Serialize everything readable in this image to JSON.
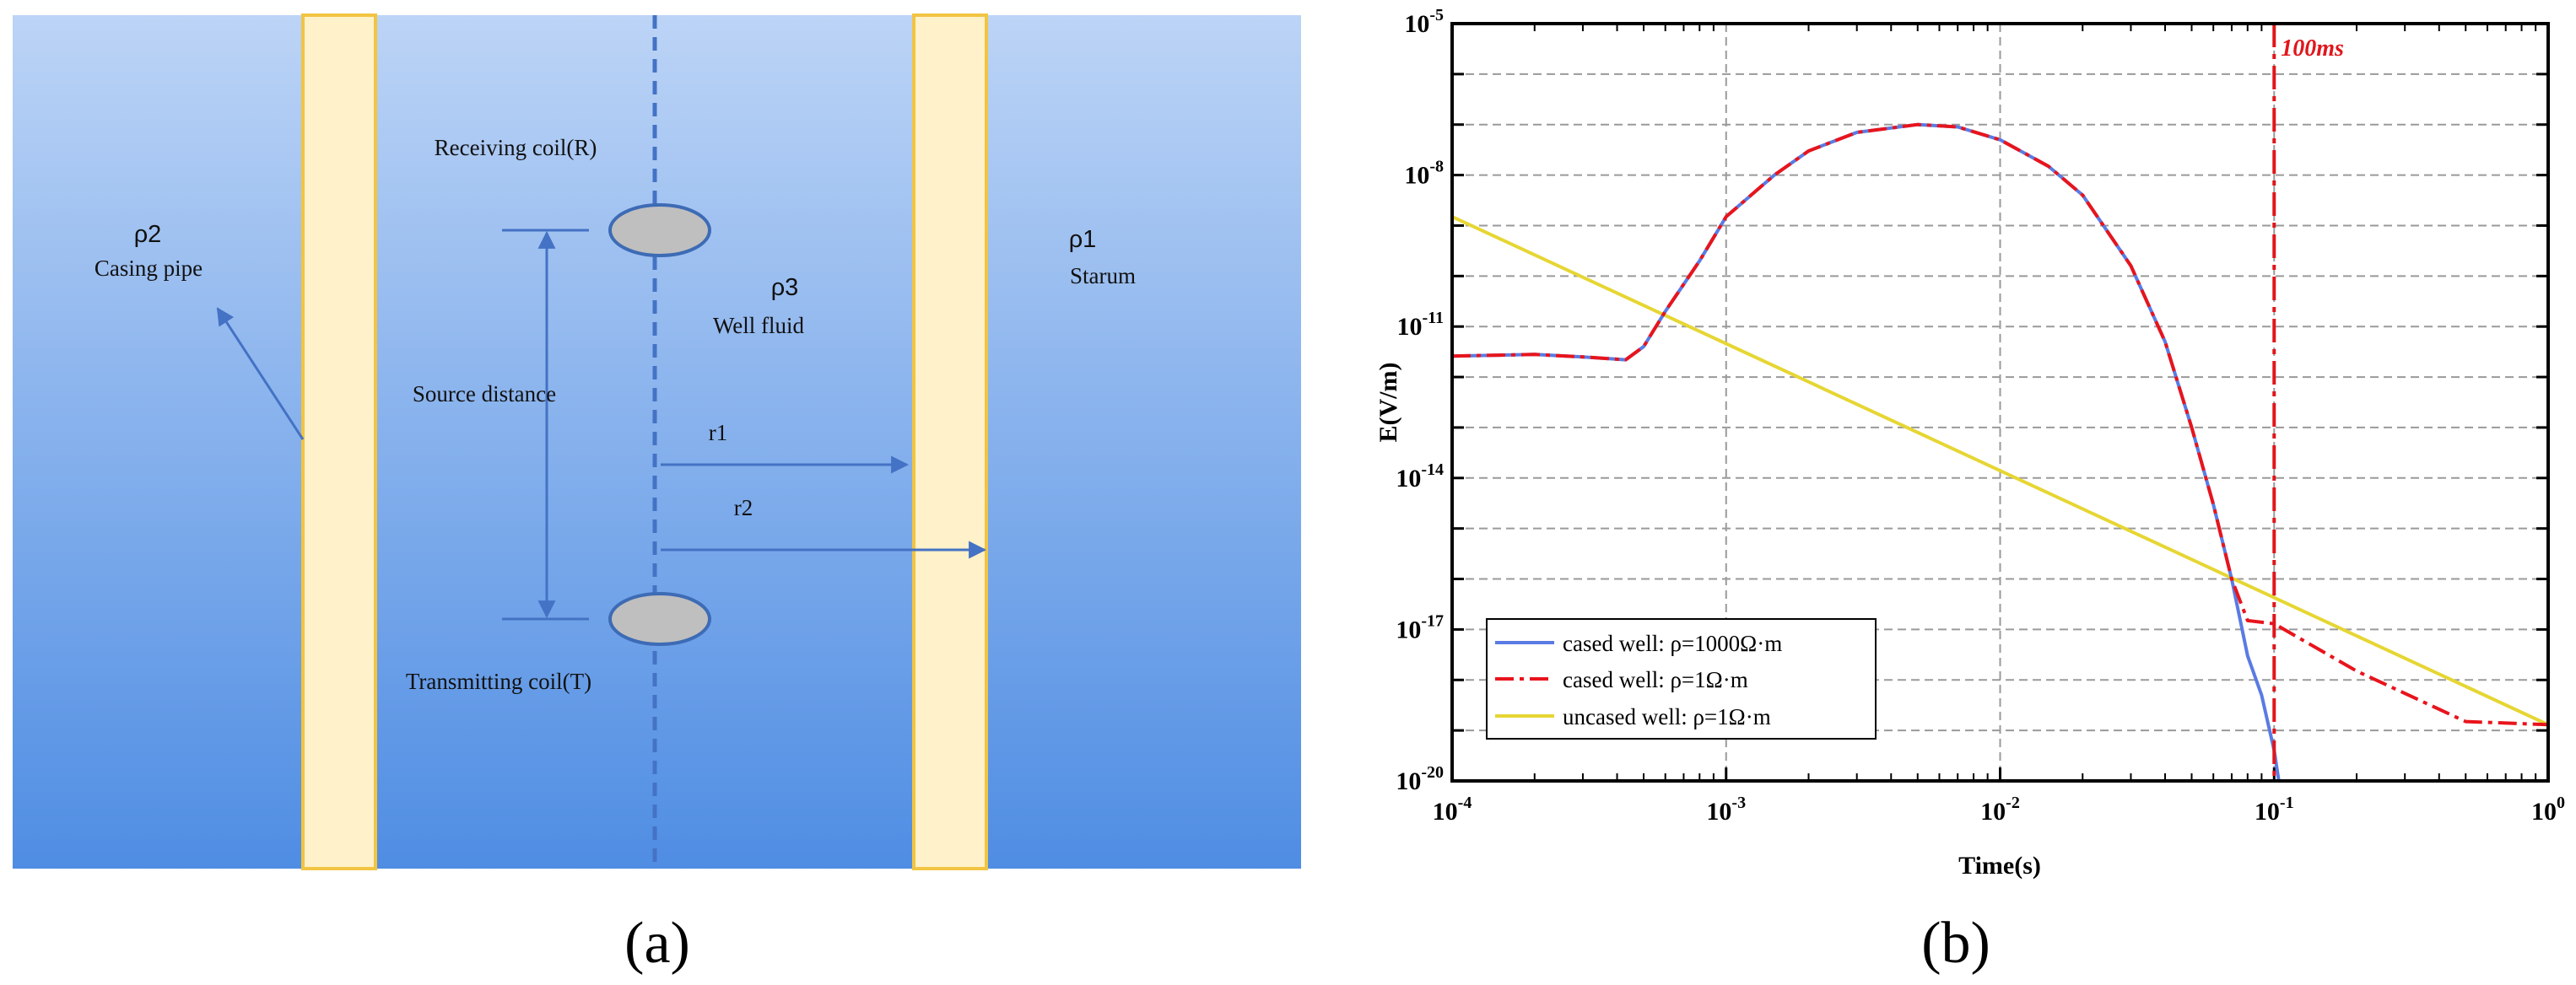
{
  "panel_a": {
    "caption": "(a)",
    "regions": {
      "casing": {
        "symbol": "ρ2",
        "name": "Casing pipe"
      },
      "fluid": {
        "symbol": "ρ3",
        "name": "Well fluid"
      },
      "stratum": {
        "symbol": "ρ1",
        "name": "Starum"
      }
    },
    "labels": {
      "receiving_coil": "Receiving coil(R)",
      "transmitting_coil": "Transmitting coil(T)",
      "source_distance": "Source distance",
      "r1": "r1",
      "r2": "r2"
    },
    "colors": {
      "background_top": "#bcd4f6",
      "background_bottom": "#4f8de3",
      "casing_fill": "#fff1c9",
      "casing_stroke": "#f2c443",
      "line": "#4472c4",
      "coil_fill": "#bfbfbf",
      "coil_stroke": "#3d6bb5"
    }
  },
  "panel_b": {
    "caption": "(b)",
    "chart_data": {
      "type": "line",
      "xlabel": "Time(s)",
      "ylabel": "E(V/m)",
      "x_scale": "log",
      "y_scale": "log",
      "xlim": [
        0.0001,
        1
      ],
      "ylim": [
        1e-20,
        1e-05
      ],
      "grid": true,
      "x_ticks": [
        {
          "value": 0.0001,
          "base": "10",
          "exp": "-4"
        },
        {
          "value": 0.001,
          "base": "10",
          "exp": "-3"
        },
        {
          "value": 0.01,
          "base": "10",
          "exp": "-2"
        },
        {
          "value": 0.1,
          "base": "10",
          "exp": "-1"
        },
        {
          "value": 1,
          "base": "10",
          "exp": "0"
        }
      ],
      "y_ticks": [
        {
          "value": 1e-20,
          "base": "10",
          "exp": "-20"
        },
        {
          "value": 1e-17,
          "base": "10",
          "exp": "-17"
        },
        {
          "value": 1e-14,
          "base": "10",
          "exp": "-14"
        },
        {
          "value": 1e-11,
          "base": "10",
          "exp": "-11"
        },
        {
          "value": 1e-08,
          "base": "10",
          "exp": "-8"
        },
        {
          "value": 1e-05,
          "base": "10",
          "exp": "-5"
        }
      ],
      "legend_position": "bottom-left",
      "annotation": {
        "x": 0.1,
        "label": "100ms",
        "color": "#e0161b"
      },
      "series": [
        {
          "name": "cased well: ρ=1000Ω·m",
          "color": "#5a7be3",
          "style": "solid",
          "points": [
            [
              0.0001,
              2.6e-12
            ],
            [
              0.0002,
              2.8e-12
            ],
            [
              0.0003,
              2.5e-12
            ],
            [
              0.00043,
              2.2e-12
            ],
            [
              0.0005,
              4e-12
            ],
            [
              0.0006,
              2e-11
            ],
            [
              0.0008,
              2e-10
            ],
            [
              0.001,
              1.5e-09
            ],
            [
              0.0015,
              1e-08
            ],
            [
              0.002,
              3e-08
            ],
            [
              0.003,
              7e-08
            ],
            [
              0.005,
              1e-07
            ],
            [
              0.007,
              9e-08
            ],
            [
              0.01,
              5e-08
            ],
            [
              0.015,
              1.5e-08
            ],
            [
              0.02,
              4e-09
            ],
            [
              0.03,
              1.6e-10
            ],
            [
              0.04,
              5e-12
            ],
            [
              0.05,
              1e-13
            ],
            [
              0.06,
              3e-15
            ],
            [
              0.07,
              1e-16
            ],
            [
              0.08,
              3e-18
            ],
            [
              0.09,
              5e-19
            ],
            [
              0.1,
              4e-20
            ],
            [
              0.104,
              1e-20
            ]
          ]
        },
        {
          "name": "cased well: ρ=1Ω·m",
          "color": "#e8141c",
          "style": "dashdot",
          "points": [
            [
              0.0001,
              2.6e-12
            ],
            [
              0.0002,
              2.8e-12
            ],
            [
              0.0003,
              2.5e-12
            ],
            [
              0.00043,
              2.2e-12
            ],
            [
              0.0005,
              4e-12
            ],
            [
              0.0006,
              2e-11
            ],
            [
              0.0008,
              2e-10
            ],
            [
              0.001,
              1.5e-09
            ],
            [
              0.0015,
              1e-08
            ],
            [
              0.002,
              3e-08
            ],
            [
              0.003,
              7e-08
            ],
            [
              0.005,
              1e-07
            ],
            [
              0.007,
              9e-08
            ],
            [
              0.01,
              5e-08
            ],
            [
              0.015,
              1.5e-08
            ],
            [
              0.02,
              4e-09
            ],
            [
              0.03,
              1.6e-10
            ],
            [
              0.04,
              5e-12
            ],
            [
              0.05,
              1e-13
            ],
            [
              0.06,
              3e-15
            ],
            [
              0.07,
              1e-16
            ],
            [
              0.08,
              1.5e-17
            ],
            [
              0.1,
              1.3e-17
            ],
            [
              0.2,
              1.5e-18
            ],
            [
              0.5,
              1.5e-19
            ],
            [
              1,
              1.3e-19
            ]
          ]
        },
        {
          "name": "uncased well: ρ=1Ω·m",
          "color": "#e6d633",
          "style": "solid",
          "points": [
            [
              0.0001,
              1.5e-09
            ],
            [
              1,
              1.3e-19
            ]
          ]
        }
      ]
    }
  }
}
